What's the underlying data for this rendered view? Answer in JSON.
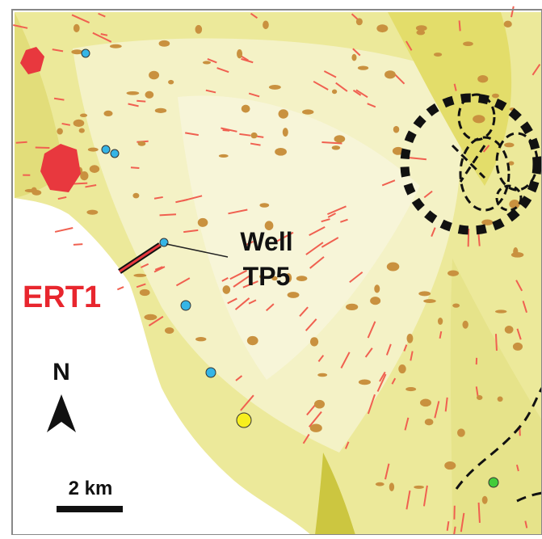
{
  "well_label": [
    "Well",
    "TP5"
  ],
  "profile_label": "ERT1",
  "north_arrow": "N",
  "scale_bar": "2 km"
}
